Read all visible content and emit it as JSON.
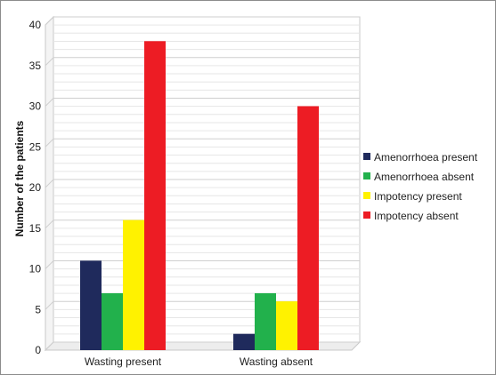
{
  "chart_data": {
    "type": "bar",
    "title": "",
    "xlabel": "",
    "ylabel": "Number of the patients",
    "ylim": [
      0,
      40
    ],
    "yticks": [
      0,
      5,
      10,
      15,
      20,
      25,
      30,
      35,
      40
    ],
    "grid": true,
    "legend_position": "right",
    "categories": [
      "Wasting present",
      "Wasting absent"
    ],
    "series": [
      {
        "name": "Amenorrhoea present",
        "color": "#1f2a5c",
        "values": [
          11,
          2
        ]
      },
      {
        "name": "Amenorrhoea absent",
        "color": "#22b14c",
        "values": [
          7,
          7
        ]
      },
      {
        "name": "Impotency present",
        "color": "#fff200",
        "values": [
          16,
          6
        ]
      },
      {
        "name": "Impotency absent",
        "color": "#ed1c24",
        "values": [
          38,
          30
        ]
      }
    ]
  }
}
